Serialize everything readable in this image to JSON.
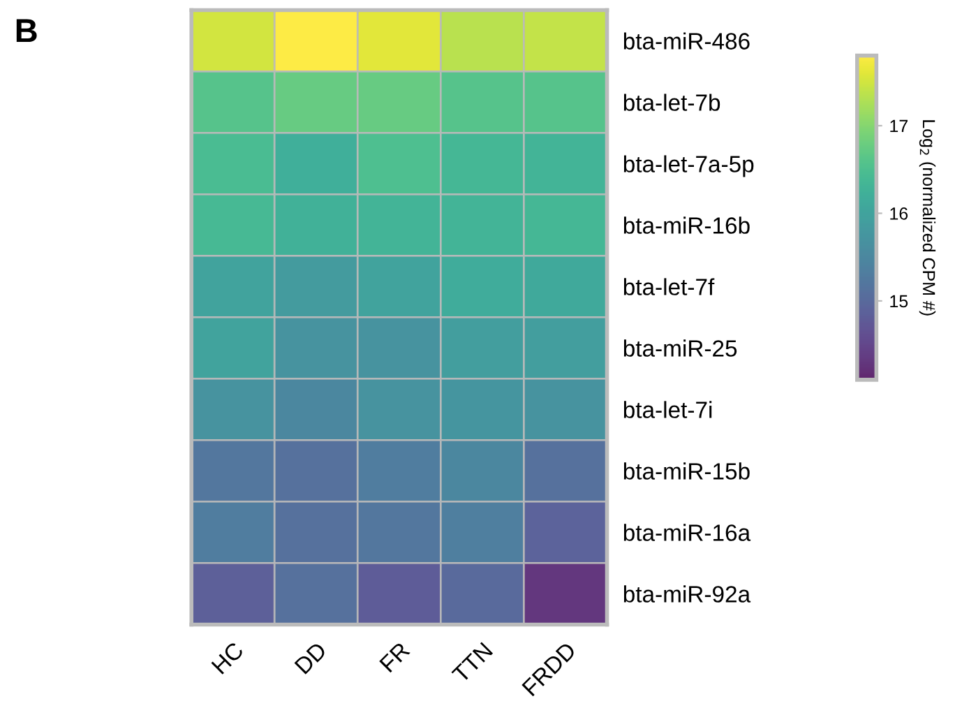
{
  "chart_data": {
    "type": "heatmap",
    "categories": [
      "HC",
      "DD",
      "FR",
      "TTN",
      "FRDD"
    ],
    "y_categories": [
      "bta-miR-486",
      "bta-let-7b",
      "bta-let-7a-5p",
      "bta-miR-16b",
      "bta-let-7f",
      "bta-miR-25",
      "bta-let-7i",
      "bta-miR-15b",
      "bta-miR-16a",
      "bta-miR-92a"
    ],
    "cells": [
      [
        17.5,
        17.8,
        17.6,
        17.35,
        17.4
      ],
      [
        16.6,
        16.75,
        16.75,
        16.6,
        16.6
      ],
      [
        16.45,
        16.2,
        16.5,
        16.35,
        16.3
      ],
      [
        16.4,
        16.25,
        16.3,
        16.3,
        16.35
      ],
      [
        16.0,
        15.85,
        16.0,
        16.15,
        16.1
      ],
      [
        16.0,
        15.7,
        15.7,
        15.9,
        15.9
      ],
      [
        15.7,
        15.5,
        15.7,
        15.75,
        15.7
      ],
      [
        15.2,
        15.1,
        15.3,
        15.5,
        15.1
      ],
      [
        15.3,
        15.1,
        15.2,
        15.35,
        14.9
      ],
      [
        14.85,
        15.1,
        14.8,
        15.0,
        14.3
      ]
    ],
    "clim": [
      14.1,
      17.8
    ],
    "cticks": [
      15,
      16,
      17
    ],
    "clabel": "Log$_{2}$ (normalized CPM #)",
    "annotations": [
      "B"
    ]
  }
}
